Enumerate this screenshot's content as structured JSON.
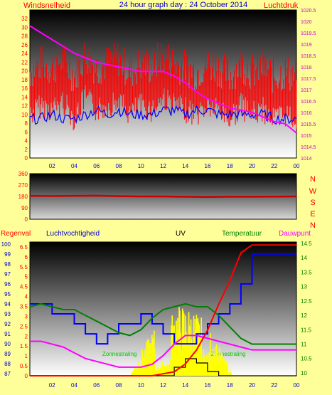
{
  "header": {
    "title": "24 hour graph day : 24 October 2014",
    "left_label": "Windsnelheid",
    "right_label": "Luchtdruk"
  },
  "colors": {
    "background": "#ffff99",
    "wind_speed": "#ff0000",
    "wind_avg": "#0000ff",
    "pressure": "#ff00ff",
    "direction": "#cc0000",
    "rain": "#ff0000",
    "humidity": "#0000ff",
    "uv": "#000000",
    "temperature": "#008000",
    "dewpoint": "#ff00ff",
    "solar": "#ffff00"
  },
  "chart_data": [
    {
      "type": "line",
      "name": "wind-pressure",
      "title": "24 hour graph day : 24 October 2014",
      "ylabel": "Windsnelheid",
      "y2label": "Luchtdruk",
      "x_ticks": [
        "02",
        "04",
        "06",
        "08",
        "10",
        "12",
        "14",
        "16",
        "18",
        "20",
        "22",
        "00"
      ],
      "y_ticks": [
        "0",
        "2",
        "4",
        "6",
        "8",
        "10",
        "12",
        "14",
        "16",
        "18",
        "20",
        "22",
        "24",
        "26",
        "28",
        "30",
        "32"
      ],
      "y2_ticks": [
        "1014",
        "1014.5",
        "1015",
        "1015.5",
        "1016",
        "1016.5",
        "1017",
        "1017.5",
        "1018",
        "1018.5",
        "1019",
        "1019.5",
        "1020",
        "1020.5"
      ],
      "ylim": [
        0,
        34
      ],
      "y2lim": [
        1014,
        1020.5
      ],
      "x": [
        0,
        1,
        2,
        3,
        4,
        5,
        6,
        7,
        8,
        9,
        10,
        11,
        12,
        13,
        14,
        15,
        16,
        17,
        18,
        19,
        20,
        21,
        22,
        23,
        24
      ],
      "series": [
        {
          "values": [
            18,
            20,
            19,
            21,
            17,
            22,
            19,
            20,
            21,
            18,
            20,
            19,
            22,
            20,
            19,
            18,
            20,
            19,
            17,
            20,
            18,
            19,
            17,
            18,
            17
          ]
        },
        {
          "values": [
            9,
            9,
            10,
            9,
            9,
            10,
            11,
            10,
            11,
            10,
            10,
            10,
            11,
            11,
            10,
            11,
            11,
            10,
            10,
            10,
            10,
            10,
            9,
            9,
            9
          ]
        },
        {
          "values": [
            1019.8,
            1019.5,
            1019.2,
            1018.9,
            1018.6,
            1018.4,
            1018.2,
            1018.1,
            1018.0,
            1017.9,
            1017.8,
            1017.8,
            1017.8,
            1017.6,
            1017.3,
            1016.9,
            1016.6,
            1016.4,
            1016.2,
            1016.1,
            1016.0,
            1015.8,
            1015.6,
            1015.5,
            1015.1
          ]
        }
      ]
    },
    {
      "type": "line",
      "name": "wind-direction",
      "y_ticks": [
        "0",
        "90",
        "180",
        "270",
        "360"
      ],
      "ylim": [
        0,
        360
      ],
      "direction_labels": [
        "N",
        "W",
        "S",
        "E",
        "N"
      ],
      "x": [
        0,
        2,
        4,
        6,
        8,
        10,
        12,
        14,
        16,
        18,
        20,
        22,
        24
      ],
      "series": [
        {
          "values": [
            185,
            183,
            185,
            186,
            182,
            180,
            180,
            178,
            176,
            178,
            178,
            179,
            180
          ]
        }
      ]
    },
    {
      "type": "line",
      "name": "rain-humidity-uv-temp",
      "labels": {
        "rain": "Regenval",
        "humidity": "Luchtvochtigheid",
        "uv": "UV",
        "temperature": "Temperatuur",
        "dewpoint": "Dauwpunt"
      },
      "x_ticks": [
        "02",
        "04",
        "06",
        "08",
        "10",
        "12",
        "14",
        "16",
        "18",
        "20",
        "22",
        "00"
      ],
      "rain_ticks": [
        "0",
        "0.5",
        "1",
        "1.5",
        "2",
        "2.5",
        "3",
        "3.5",
        "4",
        "4.5",
        "5",
        "5.5",
        "6",
        "6.5"
      ],
      "humidity_ticks": [
        "87",
        "88",
        "89",
        "90",
        "91",
        "92",
        "93",
        "94",
        "95",
        "96",
        "97",
        "98",
        "99",
        "100"
      ],
      "temp_ticks": [
        "10",
        "10.5",
        "11",
        "11.5",
        "12",
        "12.5",
        "13",
        "13.5",
        "14",
        "14.5"
      ],
      "rain_lim": [
        0,
        6.75
      ],
      "humidity_lim": [
        86.8,
        100.2
      ],
      "temp_lim": [
        9.9,
        14.55
      ],
      "annotations": [
        "Zonnestraling",
        "Zonnestraling"
      ],
      "x": [
        0,
        1,
        2,
        3,
        4,
        5,
        6,
        7,
        8,
        9,
        10,
        11,
        12,
        13,
        14,
        15,
        16,
        17,
        18,
        19,
        20,
        21,
        22,
        23,
        24
      ],
      "series": [
        {
          "name": "Regenval",
          "values": [
            0,
            0,
            0,
            0,
            0,
            0,
            0,
            0,
            0,
            0,
            0,
            0,
            0.1,
            0.2,
            0.6,
            1.3,
            2.3,
            3.6,
            4.8,
            6.2,
            6.6,
            6.6,
            6.6,
            6.6,
            6.6
          ]
        },
        {
          "name": "Luchtvochtigheid",
          "values": [
            94,
            94,
            93,
            93,
            92,
            91,
            90,
            91,
            92,
            92,
            93,
            92,
            91,
            90,
            90,
            91,
            92,
            93,
            94,
            96,
            99,
            99,
            99,
            99,
            99
          ]
        },
        {
          "name": "Temperatuur",
          "values": [
            12.3,
            12.4,
            12.3,
            12.2,
            12.2,
            12.0,
            11.8,
            11.6,
            11.4,
            11.3,
            11.5,
            11.9,
            12.2,
            12.3,
            12.4,
            12.3,
            12.3,
            12.0,
            11.6,
            11.2,
            11.0,
            11.0,
            11.0,
            11.0,
            11.0
          ]
        },
        {
          "name": "Dauwpunt",
          "values": [
            11.1,
            11.1,
            11.0,
            10.9,
            10.7,
            10.5,
            10.4,
            10.3,
            10.2,
            10.2,
            10.2,
            10.3,
            10.6,
            11.0,
            11.3,
            11.3,
            11.2,
            11.1,
            11.0,
            10.9,
            10.8,
            10.8,
            10.8,
            10.8,
            10.8
          ]
        },
        {
          "name": "UV",
          "values": [
            0,
            0,
            0,
            0,
            0,
            0,
            0,
            0,
            0,
            0,
            0,
            0,
            0,
            0.2,
            0.4,
            0.3,
            0.1,
            0,
            0,
            0,
            0,
            0,
            0,
            0,
            0
          ]
        }
      ]
    }
  ]
}
